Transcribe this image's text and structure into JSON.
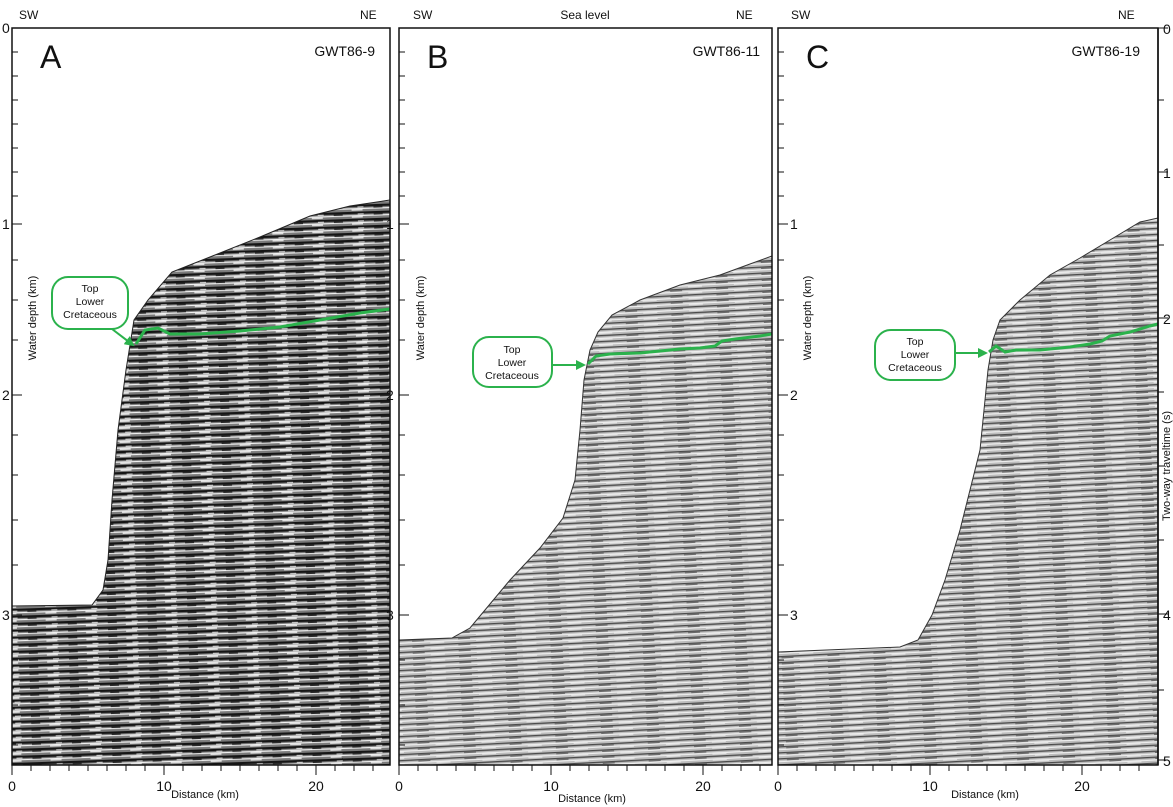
{
  "figure": {
    "sea_level_label": "Sea level",
    "right_axis": {
      "title": "Two-way traveltime (s)",
      "ticks": [
        "0",
        "1",
        "2",
        "3",
        "4",
        "5"
      ]
    }
  },
  "colors": {
    "horizon": "#2bb24c",
    "callout_border": "#2bb24c",
    "axis": "#111111",
    "seismic_dark": "#1a1a1a",
    "seismic_light": "#d9d9d9"
  },
  "panels": [
    {
      "letter": "A",
      "line_name": "GWT86-9",
      "dir_left": "SW",
      "dir_right": "NE",
      "depth_axis_title": "Water depth (km)",
      "depth_ticks": [
        "0",
        "1",
        "2",
        "3"
      ],
      "distance_axis_title": "Distance (km)",
      "distance_ticks": [
        "0",
        "10",
        "20"
      ],
      "callout": {
        "lines": [
          "Top",
          "Lower",
          "Cretaceous"
        ]
      },
      "texture": "dark"
    },
    {
      "letter": "B",
      "line_name": "GWT86-11",
      "dir_left": "SW",
      "dir_right": "NE",
      "depth_axis_title": "Water depth (km)",
      "depth_ticks": [
        "1",
        "2",
        "3"
      ],
      "distance_axis_title": "Distance (km)",
      "distance_ticks": [
        "0",
        "10",
        "20"
      ],
      "callout": {
        "lines": [
          "Top",
          "Lower",
          "Cretaceous"
        ]
      },
      "texture": "light"
    },
    {
      "letter": "C",
      "line_name": "GWT86-19",
      "dir_left": "SW",
      "dir_right": "NE",
      "depth_axis_title": "Water depth (km)",
      "depth_ticks": [
        "1",
        "2",
        "3"
      ],
      "distance_axis_title": "Distance (km)",
      "distance_ticks": [
        "0",
        "10",
        "20"
      ],
      "callout": {
        "lines": [
          "Top",
          "Lower",
          "Cretaceous"
        ]
      },
      "texture": "light"
    }
  ]
}
